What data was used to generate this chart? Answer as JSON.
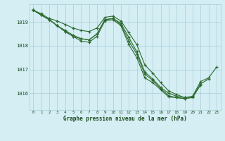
{
  "title": "Graphe pression niveau de la mer (hPa)",
  "hours": [
    0,
    1,
    2,
    3,
    4,
    5,
    6,
    7,
    8,
    9,
    10,
    11,
    12,
    13,
    14,
    15,
    16,
    17,
    18,
    19,
    20,
    21,
    22,
    23
  ],
  "line1": [
    1019.5,
    1019.3,
    1019.1,
    1018.85,
    1018.6,
    1018.4,
    1018.2,
    1018.15,
    1018.4,
    1019.05,
    1019.1,
    1018.85,
    1018.05,
    1017.5,
    1016.65,
    1016.45,
    1016.15,
    1015.85,
    1015.82,
    1015.78,
    1015.82,
    1016.35,
    null,
    null
  ],
  "line2": [
    1019.5,
    1019.3,
    1019.1,
    1018.85,
    1018.65,
    1018.45,
    1018.3,
    1018.25,
    1018.5,
    1019.1,
    1019.15,
    1018.9,
    1018.2,
    1017.65,
    1016.8,
    1016.55,
    1016.2,
    1015.9,
    1015.82,
    1015.78,
    1015.85,
    1016.4,
    1016.6,
    null
  ],
  "line3": [
    1019.5,
    1019.35,
    1019.15,
    1019.05,
    1018.9,
    1018.75,
    1018.65,
    1018.6,
    1018.75,
    1019.2,
    1019.25,
    1019.05,
    1018.55,
    1018.05,
    1017.2,
    1016.85,
    1016.45,
    1016.1,
    1015.95,
    1015.82,
    null,
    null,
    null,
    null
  ],
  "line4": [
    1019.5,
    1019.3,
    1019.1,
    1018.85,
    1018.6,
    1018.4,
    1018.3,
    1018.25,
    1018.5,
    1019.1,
    1019.15,
    1018.95,
    1018.35,
    1017.75,
    1016.9,
    1016.6,
    1016.25,
    1016.0,
    1015.88,
    1015.82,
    1015.88,
    1016.5,
    1016.65,
    1017.1
  ],
  "line_color": "#2d6a2d",
  "bg_color": "#d4eef4",
  "grid_color": "#a8ccd8",
  "text_color": "#1a4a1a",
  "ylim": [
    1015.3,
    1019.75
  ],
  "yticks": [
    1016,
    1017,
    1018,
    1019
  ],
  "figsize": [
    3.2,
    2.0
  ],
  "dpi": 100
}
